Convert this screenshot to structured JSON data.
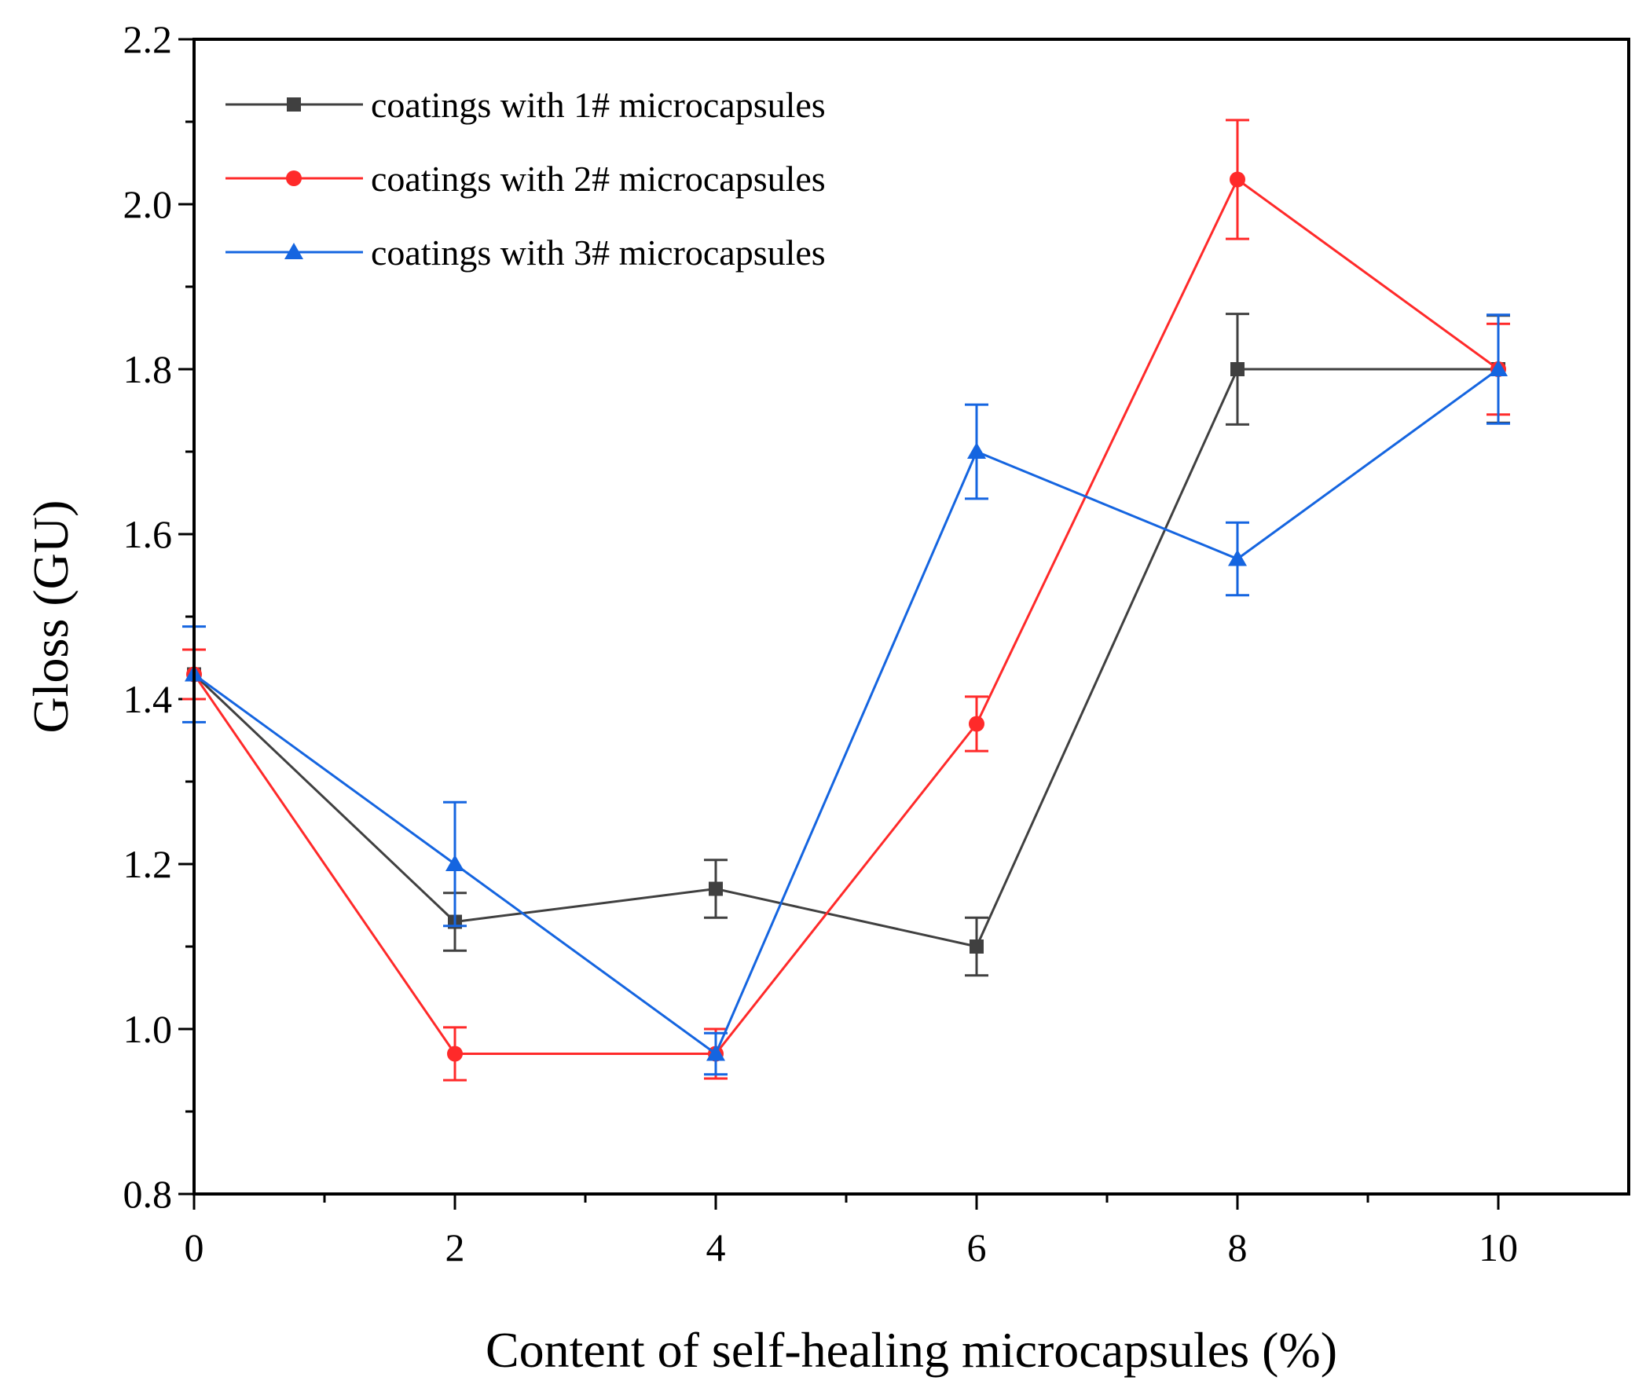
{
  "chart_data": {
    "type": "line",
    "xlabel": "Content of self-healing microcapsules (%)",
    "ylabel": "Gloss (GU)",
    "xlim": [
      0,
      11
    ],
    "ylim": [
      0.8,
      2.2
    ],
    "xticks": [
      0,
      2,
      4,
      6,
      8,
      10
    ],
    "yticks": [
      0.8,
      1.0,
      1.2,
      1.4,
      1.6,
      1.8,
      2.0,
      2.2
    ],
    "x_tick_labels": [
      "0",
      "2",
      "4",
      "6",
      "8",
      "10"
    ],
    "y_tick_labels": [
      "0.8",
      "1.0",
      "1.2",
      "1.4",
      "1.6",
      "1.8",
      "2.0",
      "2.2"
    ],
    "legend_position": "top-left",
    "x": [
      0,
      2,
      4,
      6,
      8,
      10
    ],
    "series": [
      {
        "name": "coatings with 1# microcapsules",
        "color": "#404040",
        "marker": "square",
        "values": [
          1.43,
          1.13,
          1.17,
          1.1,
          1.8,
          1.8
        ],
        "errors": [
          0.03,
          0.035,
          0.035,
          0.035,
          0.067,
          0.065
        ]
      },
      {
        "name": "coatings with 2# microcapsules",
        "color": "#ff2a2a",
        "marker": "circle",
        "values": [
          1.43,
          0.97,
          0.97,
          1.37,
          2.03,
          1.8
        ],
        "errors": [
          0.03,
          0.032,
          0.03,
          0.033,
          0.072,
          0.055
        ]
      },
      {
        "name": "coatings with 3# microcapsules",
        "color": "#1565e0",
        "marker": "triangle",
        "values": [
          1.43,
          1.2,
          0.97,
          1.7,
          1.57,
          1.8
        ],
        "errors": [
          0.058,
          0.075,
          0.025,
          0.057,
          0.044,
          0.066
        ]
      }
    ]
  }
}
